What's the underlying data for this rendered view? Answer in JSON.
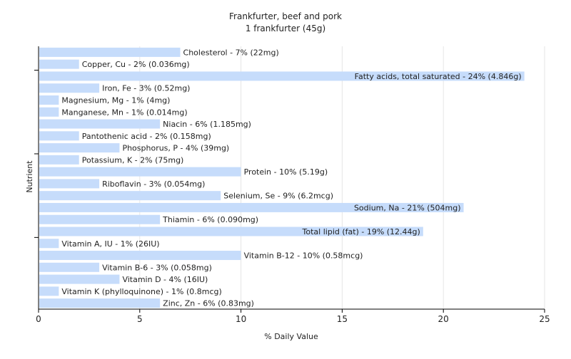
{
  "chart_data": {
    "type": "bar",
    "orientation": "horizontal",
    "title": "Frankfurter, beef and pork",
    "subtitle": "1 frankfurter (45g)",
    "xlabel": "% Daily Value",
    "ylabel": "Nutrient",
    "xlim": [
      0,
      25
    ],
    "xticks": [
      0,
      5,
      10,
      15,
      20,
      25
    ],
    "grid": "vertical",
    "bar_color": "#c6dcfb",
    "categories": [
      "Cholesterol",
      "Copper, Cu",
      "Fatty acids, total saturated",
      "Iron, Fe",
      "Magnesium, Mg",
      "Manganese, Mn",
      "Niacin",
      "Pantothenic acid",
      "Phosphorus, P",
      "Potassium, K",
      "Protein",
      "Riboflavin",
      "Selenium, Se",
      "Sodium, Na",
      "Thiamin",
      "Total lipid (fat)",
      "Vitamin A, IU",
      "Vitamin B-12",
      "Vitamin B-6",
      "Vitamin D",
      "Vitamin K (phylloquinone)",
      "Zinc, Zn"
    ],
    "values": [
      7,
      2,
      24,
      3,
      1,
      1,
      6,
      2,
      4,
      2,
      10,
      3,
      9,
      21,
      6,
      19,
      1,
      10,
      3,
      4,
      1,
      6
    ],
    "labels": [
      "Cholesterol - 7% (22mg)",
      "Copper, Cu - 2% (0.036mg)",
      "Fatty acids, total saturated - 24% (4.846g)",
      "Iron, Fe - 3% (0.52mg)",
      "Magnesium, Mg - 1% (4mg)",
      "Manganese, Mn - 1% (0.014mg)",
      "Niacin - 6% (1.185mg)",
      "Pantothenic acid - 2% (0.158mg)",
      "Phosphorus, P - 4% (39mg)",
      "Potassium, K - 2% (75mg)",
      "Protein - 10% (5.19g)",
      "Riboflavin - 3% (0.054mg)",
      "Selenium, Se - 9% (6.2mcg)",
      "Sodium, Na - 21% (504mg)",
      "Thiamin - 6% (0.090mg)",
      "Total lipid (fat) - 19% (12.44g)",
      "Vitamin A, IU - 1% (26IU)",
      "Vitamin B-12 - 10% (0.58mcg)",
      "Vitamin B-6 - 3% (0.058mg)",
      "Vitamin D - 4% (16IU)",
      "Vitamin K (phylloquinone) - 1% (0.8mcg)",
      "Zinc, Zn - 6% (0.83mg)"
    ]
  }
}
